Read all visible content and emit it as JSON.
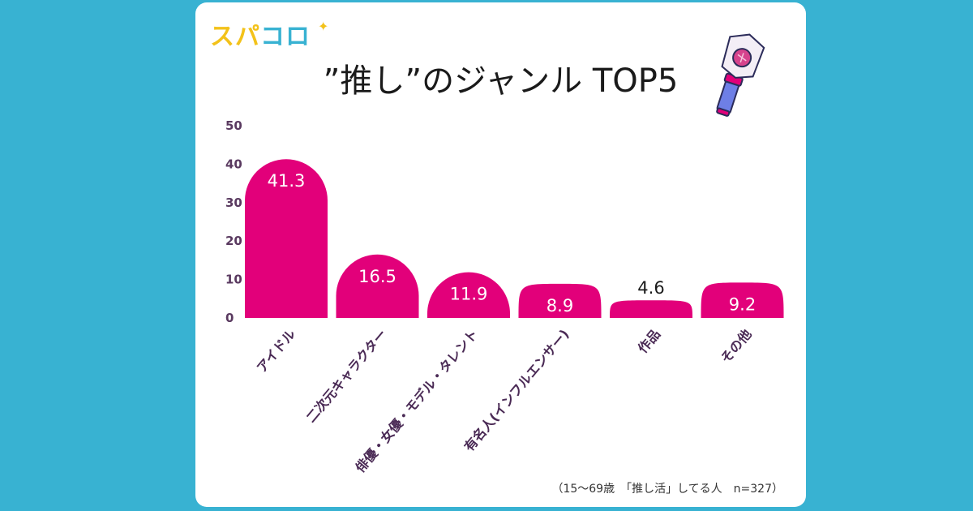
{
  "logo": {
    "chars": [
      "ス",
      "パ",
      "コ",
      "ロ"
    ]
  },
  "colors": {
    "background": "#38b2d2",
    "bar": "#e2007a",
    "card": "#ffffff"
  },
  "icons": [
    "sparkle-icon",
    "lightstick-icon"
  ],
  "note": "（15〜69歳　「推し活」してる人　n=327）",
  "chart_data": {
    "type": "bar",
    "title": "”推し”のジャンル TOP5",
    "categories": [
      "アイドル",
      "二次元キャラクター",
      "俳優・女優・モデル・タレント",
      "有名人(インフルエンサー)",
      "作品",
      "その他"
    ],
    "values": [
      41.3,
      16.5,
      11.9,
      8.9,
      4.6,
      9.2
    ],
    "value_labels": [
      "41.3",
      "16.5",
      "11.9",
      "8.9",
      "4.6",
      "9.2"
    ],
    "yticks": [
      "0",
      "10",
      "20",
      "30",
      "40",
      "50"
    ],
    "ylim": [
      0,
      50
    ],
    "grid": false,
    "legend": "none"
  }
}
